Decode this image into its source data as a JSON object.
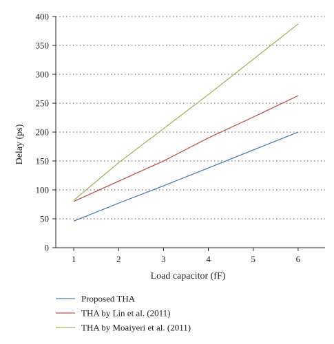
{
  "chart_data": {
    "type": "line",
    "title": "",
    "xlabel": "Load capacitor (fF)",
    "ylabel": "Delay (ps)",
    "xlim": [
      0.6,
      6.6
    ],
    "ylim": [
      0,
      400
    ],
    "x_ticks": [
      1,
      2,
      3,
      4,
      5,
      6
    ],
    "y_ticks": [
      0,
      50,
      100,
      150,
      200,
      250,
      300,
      350,
      400
    ],
    "grid": {
      "horizontal": true,
      "style": "dotted"
    },
    "legend_position": "bottom-left",
    "x": [
      1,
      2,
      3,
      4,
      5,
      6
    ],
    "series": [
      {
        "name": "Proposed THA",
        "color": "#4a7eb5",
        "values": [
          46,
          77,
          107,
          138,
          169,
          200
        ]
      },
      {
        "name": "THA by Lin et al. (2011)",
        "color": "#c0504d",
        "values": [
          80,
          115,
          150,
          190,
          226,
          263
        ]
      },
      {
        "name": "THA by Moaiyeri et al. (2011)",
        "color": "#9bbb59",
        "values": [
          82,
          147,
          206,
          265,
          326,
          387
        ]
      }
    ]
  }
}
